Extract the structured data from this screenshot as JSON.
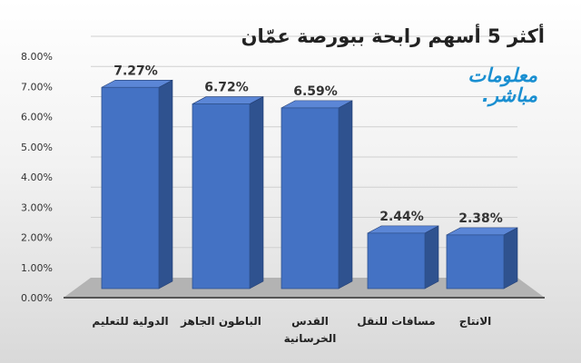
{
  "chart_data": {
    "type": "bar",
    "style": "3d-column",
    "title": "أكثر 5 أسهم رابحة ببورصة عمّان",
    "categories": [
      "الدولية للتعليم",
      "الباطون الجاهز",
      "القدس الخرسانية",
      "مسافات للنقل",
      "الانتاج"
    ],
    "values": [
      7.27,
      6.72,
      6.59,
      2.44,
      2.38
    ],
    "data_labels": [
      "7.27%",
      "6.72%",
      "6.59%",
      "2.44%",
      "2.38%"
    ],
    "ylim": [
      0,
      8
    ],
    "yticks": [
      "0.00%",
      "1.00%",
      "2.00%",
      "3.00%",
      "4.00%",
      "5.00%",
      "6.00%",
      "7.00%",
      "8.00%"
    ],
    "grid": true,
    "colors": {
      "bar_front": "#4472c4",
      "bar_side": "#2f528f",
      "bar_top": "#5b86d6",
      "floor": "#a6a6a6"
    }
  },
  "logo": {
    "text_line1": "معلومات",
    "text_line2": "مباشر."
  }
}
